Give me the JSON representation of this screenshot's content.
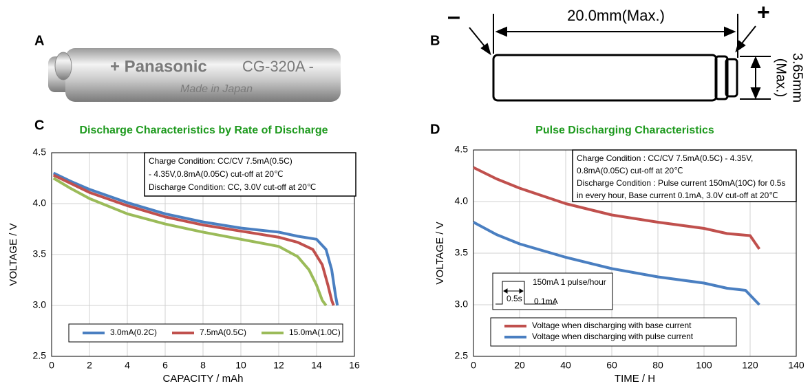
{
  "panels": {
    "a": {
      "label": "A",
      "brand": "+ Panasonic",
      "model": "CG-320A -",
      "origin": "Made in Japan"
    },
    "b": {
      "label": "B",
      "minus": "–",
      "plus": "+",
      "length": "20.0mm(Max.)",
      "diameter": "3.65mm",
      "diameter_note": "(Max.)"
    },
    "c": {
      "label": "C"
    },
    "d": {
      "label": "D"
    }
  },
  "chart_data": [
    {
      "type": "line",
      "title": "Discharge Characteristics by Rate of Discharge",
      "xlabel": "CAPACITY / mAh",
      "ylabel": "VOLTAGE / V",
      "xlim": [
        0,
        16
      ],
      "ylim": [
        2.5,
        4.5
      ],
      "xticks": [
        0,
        2,
        4,
        6,
        8,
        10,
        12,
        14,
        16
      ],
      "yticks": [
        2.5,
        {
          "value": 3,
          "label": "3.0"
        },
        3.5,
        {
          "value": 4,
          "label": "4.0"
        },
        4.5
      ],
      "grid": true,
      "annotation": [
        "Charge Condition: CC/CV 7.5mA(0.5C)",
        "- 4.35V,0.8mA(0.05C) cut-off at  20℃",
        "Discharge Condition: CC, 3.0V cut-off at 20℃"
      ],
      "series": [
        {
          "name": "3.0mA(0.2C)",
          "color": "#4a7fc1",
          "x": [
            0.1,
            1,
            2,
            4,
            6,
            8,
            10,
            12,
            13,
            14,
            14.5,
            14.8,
            15,
            15.1
          ],
          "values": [
            4.3,
            4.22,
            4.14,
            4.01,
            3.9,
            3.82,
            3.76,
            3.72,
            3.68,
            3.65,
            3.55,
            3.35,
            3.1,
            3.0
          ]
        },
        {
          "name": "7.5mA(0.5C)",
          "color": "#c0504d",
          "x": [
            0.1,
            1,
            2,
            4,
            6,
            8,
            10,
            12,
            13,
            13.8,
            14.3,
            14.6,
            14.8,
            14.9
          ],
          "values": [
            4.28,
            4.2,
            4.11,
            3.98,
            3.87,
            3.79,
            3.73,
            3.67,
            3.62,
            3.55,
            3.4,
            3.2,
            3.05,
            3.0
          ]
        },
        {
          "name": "15.0mA(1.0C)",
          "color": "#9bbb59",
          "x": [
            0.1,
            1,
            2,
            4,
            6,
            8,
            10,
            12,
            13,
            13.6,
            14,
            14.3,
            14.5
          ],
          "values": [
            4.25,
            4.15,
            4.05,
            3.9,
            3.8,
            3.72,
            3.65,
            3.58,
            3.48,
            3.35,
            3.2,
            3.05,
            3.0
          ]
        }
      ]
    },
    {
      "type": "line",
      "title": "Pulse Discharging Characteristics",
      "xlabel": "TIME / H",
      "ylabel": "VOLTAGE / V",
      "xlim": [
        0,
        140
      ],
      "ylim": [
        2.5,
        4.5
      ],
      "xticks": [
        0,
        20,
        40,
        60,
        80,
        100,
        120,
        140
      ],
      "yticks": [
        2.5,
        {
          "value": 3,
          "label": "3.0"
        },
        3.5,
        {
          "value": 4,
          "label": "4.0"
        },
        4.5
      ],
      "grid": true,
      "annotation": [
        "Charge Condition : CC/CV 7.5mA(0.5C) - 4.35V,",
        "0.8mA(0.05C) cut-off at 20℃",
        "Discharge Condition : Pulse current 150mA(10C) for 0.5s",
        "in every hour, Base  current 0.1mA, 3.0V cut-off at 20℃"
      ],
      "inset": {
        "pulse": "150mA   1 pulse/hour",
        "width": "0.5s",
        "base": "0.1mA"
      },
      "series": [
        {
          "name": "Voltage when discharging  with base current",
          "color": "#c0504d",
          "x": [
            0,
            10,
            20,
            40,
            60,
            80,
            100,
            110,
            120,
            124
          ],
          "values": [
            4.33,
            4.22,
            4.13,
            3.98,
            3.87,
            3.8,
            3.74,
            3.69,
            3.67,
            3.54
          ]
        },
        {
          "name": "Voltage when discharging with pulse current",
          "color": "#4a7fc1",
          "x": [
            0,
            10,
            20,
            40,
            60,
            80,
            100,
            110,
            118,
            124
          ],
          "values": [
            3.8,
            3.68,
            3.59,
            3.46,
            3.35,
            3.27,
            3.21,
            3.16,
            3.14,
            3.0
          ]
        }
      ]
    }
  ]
}
